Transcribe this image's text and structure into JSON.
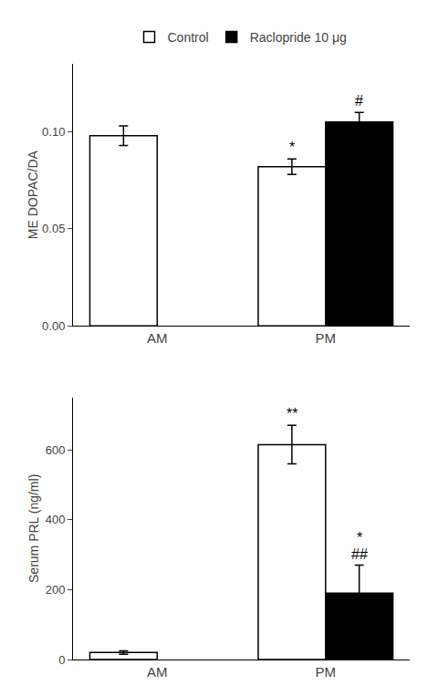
{
  "chart_data": [
    {
      "type": "bar",
      "ylabel": "ME DOPAC/DA",
      "categories": [
        "AM",
        "PM"
      ],
      "series": [
        {
          "name": "Control",
          "color": "white",
          "values": [
            0.098,
            0.082
          ],
          "errors": [
            0.005,
            0.004
          ]
        },
        {
          "name": "Raclopride 10 μg",
          "color": "black",
          "values": [
            null,
            0.105
          ],
          "errors": [
            null,
            0.005
          ]
        }
      ],
      "annotations": [
        {
          "text": "*",
          "category": "PM",
          "series": "Control"
        },
        {
          "text": "#",
          "category": "PM",
          "series": "Raclopride 10 μg"
        }
      ],
      "ylim": [
        0.0,
        0.135
      ],
      "yticks": [
        {
          "value": 0.0,
          "label": "0.00"
        },
        {
          "value": 0.05,
          "label": "0.05"
        },
        {
          "value": 0.1,
          "label": "0.10"
        }
      ],
      "grid": false
    },
    {
      "type": "bar",
      "ylabel": "Serum PRL (ng/ml)",
      "categories": [
        "AM",
        "PM"
      ],
      "series": [
        {
          "name": "Control",
          "color": "white",
          "values": [
            20,
            615
          ],
          "errors": [
            5,
            55
          ]
        },
        {
          "name": "Raclopride 10 μg",
          "color": "black",
          "values": [
            null,
            190
          ],
          "errors": [
            null,
            80
          ]
        }
      ],
      "annotations": [
        {
          "text": "**",
          "category": "PM",
          "series": "Control"
        },
        {
          "text": "##",
          "category": "PM",
          "series": "Raclopride 10 μg"
        },
        {
          "text": "*",
          "category": "PM",
          "series": "Raclopride 10 μg"
        }
      ],
      "ylim": [
        0,
        750
      ],
      "yticks": [
        0,
        200,
        400,
        600
      ],
      "grid": false
    }
  ]
}
